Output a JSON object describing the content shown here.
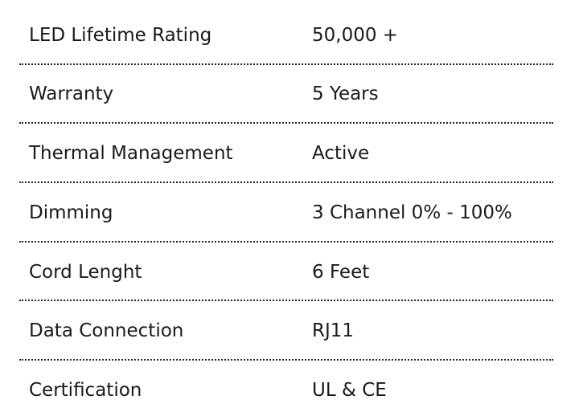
{
  "specs": [
    {
      "label": "LED Lifetime Rating",
      "value": "50,000 +"
    },
    {
      "label": "Warranty",
      "value": "5 Years"
    },
    {
      "label": "Thermal Management",
      "value": "Active"
    },
    {
      "label": "Dimming",
      "value": "3 Channel 0% - 100%"
    },
    {
      "label": "Cord Lenght",
      "value": "6 Feet"
    },
    {
      "label": "Data Connection",
      "value": "RJ11"
    },
    {
      "label": "Certification",
      "value": "UL & CE"
    }
  ]
}
